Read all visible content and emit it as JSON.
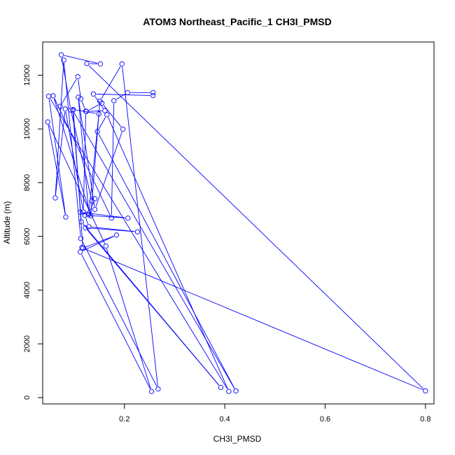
{
  "chart_data": {
    "type": "line",
    "title": "ATOM3 Northeast_Pacific_1 CH3I_PMSD",
    "xlabel": "CH3I_PMSD",
    "ylabel": "Altitude (m)",
    "xlim": [
      0.037,
      0.817
    ],
    "ylim": [
      -235,
      13235
    ],
    "xticks": [
      0.2,
      0.4,
      0.6,
      0.8
    ],
    "xtick_labels": [
      "0.2",
      "0.4",
      "0.6",
      "0.8"
    ],
    "yticks": [
      0,
      2000,
      4000,
      6000,
      8000,
      10000,
      12000
    ],
    "ytick_labels": [
      "0",
      "2000",
      "4000",
      "6000",
      "8000",
      "10000",
      "12000"
    ],
    "grid": false,
    "series_color": "#0000ff",
    "marker": "open-circle",
    "series": [
      {
        "points": [
          [
            0.072,
            10840
          ],
          [
            0.107,
            11940
          ],
          [
            0.113,
            11120
          ],
          [
            0.123,
            10660
          ],
          [
            0.118,
            6910
          ],
          [
            0.082,
            10740
          ],
          [
            0.062,
            7430
          ],
          [
            0.079,
            12560
          ],
          [
            0.113,
            5920
          ],
          [
            0.267,
            320
          ],
          [
            0.195,
            12420
          ],
          [
            0.151,
            11030
          ],
          [
            0.133,
            6770
          ],
          [
            0.058,
            11230
          ],
          [
            0.174,
            6680
          ],
          [
            0.179,
            11050
          ],
          [
            0.206,
            11350
          ],
          [
            0.257,
            11350
          ],
          [
            0.257,
            11240
          ],
          [
            0.138,
            11300
          ],
          [
            0.161,
            10680
          ],
          [
            0.124,
            10650
          ],
          [
            0.155,
            10960
          ],
          [
            0.197,
            9990
          ],
          [
            0.141,
            7000
          ],
          [
            0.108,
            11180
          ],
          [
            0.129,
            6860
          ],
          [
            0.149,
            10560
          ],
          [
            0.098,
            10720
          ],
          [
            0.117,
            5560
          ],
          [
            0.184,
            6050
          ],
          [
            0.112,
            5420
          ],
          [
            0.254,
            230
          ],
          [
            0.163,
            5640
          ],
          [
            0.047,
            10260
          ],
          [
            0.083,
            6720
          ],
          [
            0.049,
            11220
          ],
          [
            0.408,
            230
          ],
          [
            0.165,
            10530
          ],
          [
            0.146,
            9900
          ],
          [
            0.422,
            250
          ],
          [
            0.097,
            10690
          ],
          [
            0.114,
            6540
          ],
          [
            0.392,
            380
          ],
          [
            0.122,
            6320
          ],
          [
            0.226,
            6170
          ],
          [
            0.129,
            6360
          ],
          [
            0.121,
            6790
          ],
          [
            0.207,
            6680
          ],
          [
            0.112,
            6900
          ],
          [
            0.128,
            6800
          ],
          [
            0.141,
            7400
          ],
          [
            0.135,
            7320
          ],
          [
            0.093,
            10700
          ],
          [
            0.074,
            12760
          ],
          [
            0.152,
            12420
          ],
          [
            0.125,
            12430
          ],
          [
            0.8,
            250
          ],
          [
            0.115,
            5580
          ]
        ]
      }
    ]
  }
}
